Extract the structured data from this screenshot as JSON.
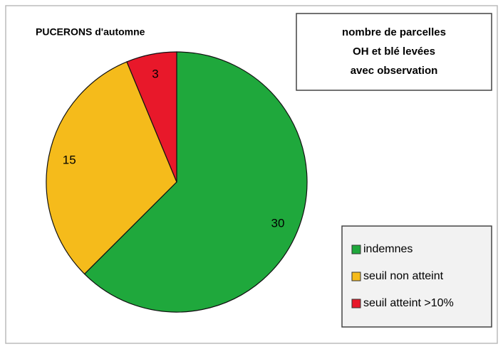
{
  "chart_data": {
    "type": "pie",
    "title": "PUCERONS d'automne",
    "annotation": [
      "nombre de parcelles",
      "OH et blé levées",
      "avec observation"
    ],
    "categories": [
      "indemnes",
      "seuil non atteint",
      "seuil atteint >10%"
    ],
    "values": [
      30,
      15,
      3
    ],
    "colors": [
      "#1fa83c",
      "#f5bb1b",
      "#e8182a"
    ],
    "legend": "lower right"
  }
}
